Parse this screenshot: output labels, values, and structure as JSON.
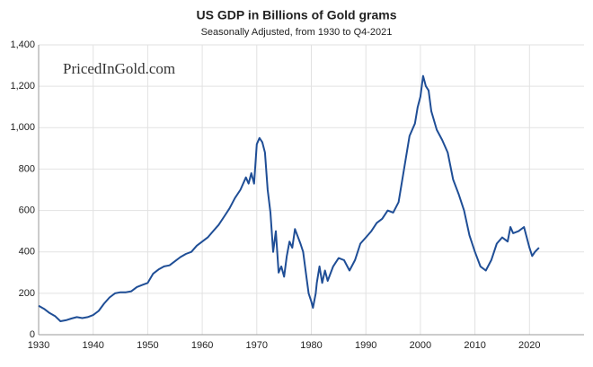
{
  "chart_data": {
    "type": "line",
    "title": "US GDP in Billions of Gold grams",
    "subtitle": "Seasonally Adjusted, from 1930 to Q4-2021",
    "annotation": "PricedInGold.com",
    "x": [
      1930,
      1931,
      1932,
      1933,
      1934,
      1935,
      1936,
      1937,
      1938,
      1939,
      1940,
      1941,
      1942,
      1943,
      1944,
      1945,
      1946,
      1947,
      1948,
      1949,
      1950,
      1951,
      1952,
      1953,
      1954,
      1955,
      1956,
      1957,
      1958,
      1959,
      1960,
      1961,
      1962,
      1963,
      1964,
      1965,
      1966,
      1967,
      1968,
      1968.5,
      1969,
      1969.5,
      1970,
      1970.5,
      1971,
      1971.5,
      1972,
      1972.5,
      1973,
      1973.5,
      1974,
      1974.5,
      1975,
      1975.5,
      1976,
      1976.5,
      1977,
      1978,
      1978.5,
      1979,
      1979.5,
      1980,
      1980.3,
      1980.8,
      1981,
      1981.5,
      1982,
      1982.5,
      1983,
      1984,
      1985,
      1986,
      1987,
      1988,
      1989,
      1990,
      1991,
      1992,
      1993,
      1994,
      1995,
      1996,
      1997,
      1998,
      1999,
      1999.5,
      2000,
      2000.5,
      2001,
      2001.5,
      2002,
      2003,
      2004,
      2005,
      2006,
      2007,
      2008,
      2009,
      2010,
      2011,
      2012,
      2013,
      2014,
      2015,
      2016,
      2016.5,
      2017,
      2018,
      2019,
      2020,
      2020.5,
      2021,
      2021.75
    ],
    "series": [
      {
        "name": "US GDP",
        "color": "#1f4e96",
        "values": [
          140,
          125,
          105,
          90,
          65,
          70,
          78,
          85,
          80,
          85,
          95,
          115,
          150,
          180,
          200,
          205,
          205,
          210,
          230,
          240,
          250,
          295,
          315,
          330,
          335,
          355,
          375,
          390,
          400,
          430,
          450,
          470,
          500,
          530,
          570,
          610,
          660,
          700,
          760,
          730,
          780,
          730,
          920,
          950,
          930,
          880,
          700,
          590,
          400,
          500,
          300,
          330,
          280,
          380,
          450,
          420,
          510,
          440,
          400,
          300,
          200,
          160,
          130,
          200,
          250,
          330,
          250,
          310,
          260,
          330,
          370,
          360,
          310,
          360,
          440,
          470,
          500,
          540,
          560,
          600,
          590,
          640,
          800,
          960,
          1020,
          1100,
          1150,
          1250,
          1200,
          1180,
          1080,
          990,
          940,
          880,
          750,
          680,
          600,
          480,
          400,
          330,
          310,
          360,
          440,
          470,
          450,
          520,
          490,
          500,
          520,
          420,
          380,
          400,
          420
        ]
      }
    ],
    "xlim": [
      1930,
      2030
    ],
    "xticks": [
      1930,
      1940,
      1950,
      1960,
      1970,
      1980,
      1990,
      2000,
      2010,
      2020
    ],
    "ylim": [
      0,
      1400
    ],
    "yticks": [
      0,
      200,
      400,
      600,
      800,
      {
        "value": 1000,
        "label": "1,000"
      },
      {
        "value": 1200,
        "label": "1,200"
      },
      {
        "value": 1400,
        "label": "1,400"
      }
    ],
    "grid": true
  }
}
